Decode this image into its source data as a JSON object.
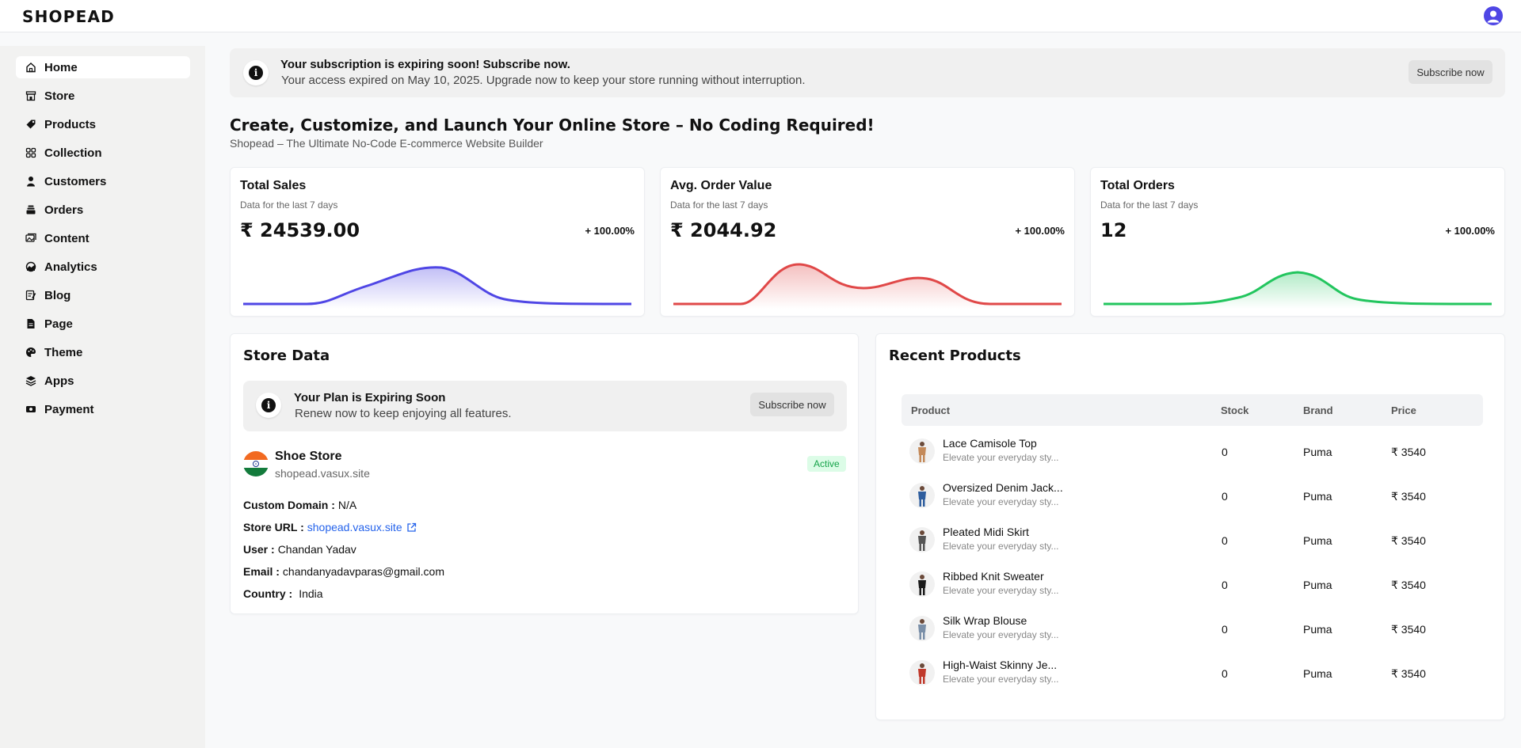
{
  "header": {
    "logo": "SHOPEAD",
    "user_icon": "user-circle-icon"
  },
  "sidebar": {
    "items": [
      {
        "label": "Home",
        "icon": "home-icon",
        "active": true
      },
      {
        "label": "Store",
        "icon": "store-icon"
      },
      {
        "label": "Products",
        "icon": "tag-icon"
      },
      {
        "label": "Collection",
        "icon": "grid-icon"
      },
      {
        "label": "Customers",
        "icon": "person-icon"
      },
      {
        "label": "Orders",
        "icon": "orders-stack-icon"
      },
      {
        "label": "Content",
        "icon": "images-icon"
      },
      {
        "label": "Analytics",
        "icon": "gauge-icon"
      },
      {
        "label": "Blog",
        "icon": "blog-icon"
      },
      {
        "label": "Page",
        "icon": "document-icon"
      },
      {
        "label": "Theme",
        "icon": "palette-icon"
      },
      {
        "label": "Apps",
        "icon": "layers-icon"
      },
      {
        "label": "Payment",
        "icon": "money-icon"
      }
    ]
  },
  "alert": {
    "title": "Your subscription is expiring soon! Subscribe now.",
    "text": "Your access expired on May 10, 2025. Upgrade now to keep your store running without interruption.",
    "button": "Subscribe now"
  },
  "page": {
    "title": "Create, Customize, and Launch Your Online Store – No Coding Required!",
    "subtitle": "Shopead – The Ultimate No-Code E-commerce Website Builder"
  },
  "stats": [
    {
      "title": "Total Sales",
      "subtitle": "Data for the last 7 days",
      "value": "₹ 24539.00",
      "change": "+ 100.00%",
      "color": "#4f46e5"
    },
    {
      "title": "Avg. Order Value",
      "subtitle": "Data for the last 7 days",
      "value": "₹ 2044.92",
      "change": "+ 100.00%",
      "color": "#e04848"
    },
    {
      "title": "Total Orders",
      "subtitle": "Data for the last 7 days",
      "value": "12",
      "change": "+ 100.00%",
      "color": "#22c55e"
    }
  ],
  "store_data": {
    "title": "Store Data",
    "plan_title": "Your Plan is Expiring Soon",
    "plan_text": "Renew now to keep enjoying all features.",
    "plan_button": "Subscribe now",
    "store_name": "Shoe Store",
    "store_domain": "shopead.vasux.site",
    "status": "Active",
    "fields": [
      {
        "key": "Custom Domain :",
        "value": "N/A"
      },
      {
        "key": "Store URL :",
        "value": "shopead.vasux.site",
        "link": true
      },
      {
        "key": "User :",
        "value": "Chandan Yadav"
      },
      {
        "key": "Email :",
        "value": "chandanyadavparas@gmail.com"
      },
      {
        "key": "Country :",
        "value": "India"
      }
    ]
  },
  "recent_products": {
    "title": "Recent Products",
    "columns": [
      "Product",
      "Stock",
      "Brand",
      "Price"
    ],
    "rows": [
      {
        "name": "Lace Camisole Top",
        "desc": "Elevate your everyday sty...",
        "stock": "0",
        "brand": "Puma",
        "price": "₹ 3540",
        "color": "#c48a5a"
      },
      {
        "name": "Oversized Denim Jack...",
        "desc": "Elevate your everyday sty...",
        "stock": "0",
        "brand": "Puma",
        "price": "₹ 3540",
        "color": "#2f5e9e"
      },
      {
        "name": "Pleated Midi Skirt",
        "desc": "Elevate your everyday sty...",
        "stock": "0",
        "brand": "Puma",
        "price": "₹ 3540",
        "color": "#555555"
      },
      {
        "name": "Ribbed Knit Sweater",
        "desc": "Elevate your everyday sty...",
        "stock": "0",
        "brand": "Puma",
        "price": "₹ 3540",
        "color": "#1a1a1a"
      },
      {
        "name": "Silk Wrap Blouse",
        "desc": "Elevate your everyday sty...",
        "stock": "0",
        "brand": "Puma",
        "price": "₹ 3540",
        "color": "#7a8fa8"
      },
      {
        "name": "High-Waist Skinny Je...",
        "desc": "Elevate your everyday sty...",
        "stock": "0",
        "brand": "Puma",
        "price": "₹ 3540",
        "color": "#c0392b"
      }
    ]
  }
}
